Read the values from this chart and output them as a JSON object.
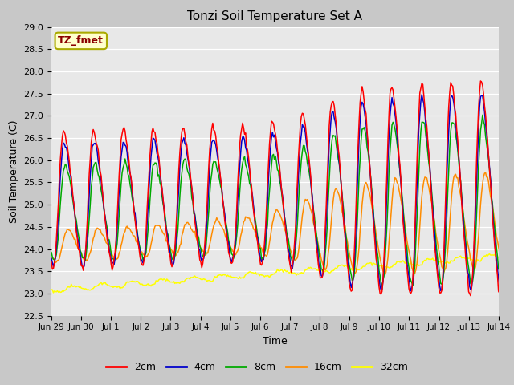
{
  "title": "Tonzi Soil Temperature Set A",
  "xlabel": "Time",
  "ylabel": "Soil Temperature (C)",
  "ylim": [
    22.5,
    29.0
  ],
  "yticks": [
    22.5,
    23.0,
    23.5,
    24.0,
    24.5,
    25.0,
    25.5,
    26.0,
    26.5,
    27.0,
    27.5,
    28.0,
    28.5,
    29.0
  ],
  "xtick_labels": [
    "Jun 29",
    "Jun 30",
    "Jul 1",
    "Jul 2",
    "Jul 3",
    "Jul 4",
    "Jul 5",
    "Jul 6",
    "Jul 7",
    "Jul 8",
    "Jul 9",
    "Jul 10",
    "Jul 11",
    "Jul 12",
    "Jul 13",
    "Jul 14"
  ],
  "colors": {
    "2cm": "#ff0000",
    "4cm": "#0000cc",
    "8cm": "#00aa00",
    "16cm": "#ff8c00",
    "32cm": "#ffff00"
  },
  "legend_label": "TZ_fmet",
  "fig_bg_color": "#c8c8c8",
  "plot_bg_color": "#e8e8e8",
  "annotation_box_color": "#ffffcc",
  "annotation_text_color": "#8b0000",
  "annotation_border_color": "#aaaa00",
  "grid_color": "#ffffff",
  "n_points": 480
}
